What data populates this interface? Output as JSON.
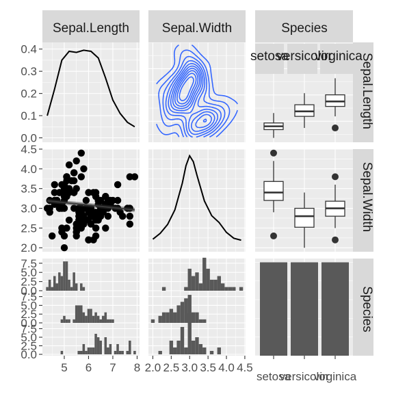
{
  "chart_data": {
    "type": "pairs",
    "variables": [
      "Sepal.Length",
      "Sepal.Width",
      "Species"
    ],
    "strips": {
      "top": [
        "Sepal.Length",
        "Sepal.Width",
        "Species"
      ],
      "right": [
        "Sepal.Length",
        "Sepal.Width",
        "Species"
      ],
      "species_sub": [
        "setosa",
        "versicolor",
        "virginica"
      ]
    },
    "axes": {
      "x_sepal_length": {
        "range": [
          4.1,
          8.1
        ],
        "ticks": [
          "5",
          "6",
          "7",
          "8"
        ],
        "tick_values": [
          5,
          6,
          7,
          8
        ]
      },
      "x_sepal_width": {
        "range": [
          1.88,
          4.52
        ],
        "ticks": [
          "2.0",
          "2.5",
          "3.0",
          "3.5",
          "4.0",
          "4.5"
        ],
        "tick_values": [
          2.0,
          2.5,
          3.0,
          3.5,
          4.0,
          4.5
        ]
      },
      "x_species": {
        "ticks": [
          "setosa",
          "versicolor",
          "virginica"
        ]
      },
      "y_density": {
        "range": [
          -0.02,
          0.43
        ],
        "ticks": [
          "0.0",
          "0.1",
          "0.2",
          "0.3",
          "0.4"
        ],
        "tick_values": [
          0,
          0.1,
          0.2,
          0.3,
          0.4
        ]
      },
      "y_sepal_width": {
        "range": [
          1.9,
          4.5
        ],
        "ticks": [
          "2.0",
          "2.5",
          "3.0",
          "3.5",
          "4.0",
          "4.5"
        ],
        "tick_values": [
          2.0,
          2.5,
          3.0,
          3.5,
          4.0,
          4.5
        ]
      },
      "y_count": {
        "range": [
          0,
          8.4
        ],
        "ticks": [
          "0.0",
          "2.5",
          "5.0",
          "7.5"
        ],
        "tick_values": [
          0,
          2.5,
          5.0,
          7.5
        ]
      }
    },
    "panels": {
      "density_sepal_length": {
        "type": "line",
        "x": [
          4.3,
          4.6,
          4.9,
          5.2,
          5.5,
          5.8,
          6.1,
          6.4,
          6.7,
          7.0,
          7.3,
          7.6,
          7.9
        ],
        "y": [
          0.1,
          0.22,
          0.35,
          0.39,
          0.385,
          0.395,
          0.39,
          0.36,
          0.27,
          0.17,
          0.11,
          0.07,
          0.05
        ]
      },
      "density_sepal_width": {
        "type": "line",
        "x": [
          2.0,
          2.2,
          2.4,
          2.6,
          2.8,
          2.9,
          3.0,
          3.1,
          3.2,
          3.4,
          3.6,
          3.8,
          4.0,
          4.2,
          4.4
        ],
        "y": [
          0.03,
          0.09,
          0.18,
          0.33,
          0.6,
          0.78,
          0.88,
          0.82,
          0.68,
          0.42,
          0.27,
          0.2,
          0.1,
          0.04,
          0.02
        ]
      },
      "scatter_sepal_length_vs_width": {
        "type": "scatter",
        "points": [
          [
            5.1,
            3.5
          ],
          [
            4.9,
            3.0
          ],
          [
            4.7,
            3.2
          ],
          [
            4.6,
            3.1
          ],
          [
            5.0,
            3.6
          ],
          [
            5.4,
            3.9
          ],
          [
            4.6,
            3.4
          ],
          [
            5.0,
            3.4
          ],
          [
            4.4,
            2.9
          ],
          [
            4.9,
            3.1
          ],
          [
            5.4,
            3.7
          ],
          [
            4.8,
            3.4
          ],
          [
            4.8,
            3.0
          ],
          [
            4.3,
            3.0
          ],
          [
            5.8,
            4.0
          ],
          [
            5.7,
            4.4
          ],
          [
            5.4,
            3.9
          ],
          [
            5.1,
            3.5
          ],
          [
            5.7,
            3.8
          ],
          [
            5.1,
            3.8
          ],
          [
            5.4,
            3.4
          ],
          [
            5.1,
            3.7
          ],
          [
            4.6,
            3.6
          ],
          [
            5.1,
            3.3
          ],
          [
            4.8,
            3.4
          ],
          [
            5.0,
            3.0
          ],
          [
            5.0,
            3.4
          ],
          [
            5.2,
            3.5
          ],
          [
            5.2,
            3.4
          ],
          [
            4.7,
            3.2
          ],
          [
            4.8,
            3.1
          ],
          [
            5.4,
            3.4
          ],
          [
            5.2,
            4.1
          ],
          [
            5.5,
            4.2
          ],
          [
            4.9,
            3.1
          ],
          [
            5.0,
            3.2
          ],
          [
            5.5,
            3.5
          ],
          [
            4.9,
            3.6
          ],
          [
            4.4,
            3.0
          ],
          [
            5.1,
            3.4
          ],
          [
            5.0,
            3.5
          ],
          [
            4.5,
            2.3
          ],
          [
            4.4,
            3.2
          ],
          [
            5.0,
            3.5
          ],
          [
            5.1,
            3.8
          ],
          [
            4.8,
            3.0
          ],
          [
            5.1,
            3.8
          ],
          [
            4.6,
            3.2
          ],
          [
            5.3,
            3.7
          ],
          [
            5.0,
            3.3
          ],
          [
            7.0,
            3.2
          ],
          [
            6.4,
            3.2
          ],
          [
            6.9,
            3.1
          ],
          [
            5.5,
            2.3
          ],
          [
            6.5,
            2.8
          ],
          [
            5.7,
            2.8
          ],
          [
            6.3,
            3.3
          ],
          [
            4.9,
            2.4
          ],
          [
            6.6,
            2.9
          ],
          [
            5.2,
            2.7
          ],
          [
            5.0,
            2.0
          ],
          [
            5.9,
            3.0
          ],
          [
            6.0,
            2.2
          ],
          [
            6.1,
            2.9
          ],
          [
            5.6,
            2.9
          ],
          [
            6.7,
            3.1
          ],
          [
            5.6,
            3.0
          ],
          [
            5.8,
            2.7
          ],
          [
            6.2,
            2.2
          ],
          [
            5.6,
            2.5
          ],
          [
            5.9,
            3.2
          ],
          [
            6.1,
            2.8
          ],
          [
            6.3,
            2.5
          ],
          [
            6.1,
            2.8
          ],
          [
            6.4,
            2.9
          ],
          [
            6.6,
            3.0
          ],
          [
            6.8,
            2.8
          ],
          [
            6.7,
            3.0
          ],
          [
            6.0,
            2.9
          ],
          [
            5.7,
            2.6
          ],
          [
            5.5,
            2.4
          ],
          [
            5.5,
            2.4
          ],
          [
            5.8,
            2.7
          ],
          [
            6.0,
            2.7
          ],
          [
            5.4,
            3.0
          ],
          [
            6.0,
            3.4
          ],
          [
            6.7,
            3.1
          ],
          [
            6.3,
            2.3
          ],
          [
            5.6,
            3.0
          ],
          [
            5.5,
            2.5
          ],
          [
            5.5,
            2.6
          ],
          [
            6.1,
            3.0
          ],
          [
            5.8,
            2.6
          ],
          [
            5.0,
            2.3
          ],
          [
            5.6,
            2.7
          ],
          [
            5.7,
            3.0
          ],
          [
            5.7,
            2.9
          ],
          [
            6.2,
            2.9
          ],
          [
            5.1,
            2.5
          ],
          [
            5.7,
            2.8
          ],
          [
            6.3,
            3.3
          ],
          [
            5.8,
            2.7
          ],
          [
            7.1,
            3.0
          ],
          [
            6.3,
            2.9
          ],
          [
            6.5,
            3.0
          ],
          [
            7.6,
            3.0
          ],
          [
            4.9,
            2.5
          ],
          [
            7.3,
            2.9
          ],
          [
            6.7,
            2.5
          ],
          [
            7.2,
            3.6
          ],
          [
            6.5,
            3.2
          ],
          [
            6.4,
            2.7
          ],
          [
            6.8,
            3.0
          ],
          [
            5.7,
            2.5
          ],
          [
            5.8,
            2.8
          ],
          [
            6.4,
            3.2
          ],
          [
            6.5,
            3.0
          ],
          [
            7.7,
            3.8
          ],
          [
            7.7,
            2.6
          ],
          [
            6.0,
            2.2
          ],
          [
            6.9,
            3.2
          ],
          [
            5.6,
            2.8
          ],
          [
            7.7,
            2.8
          ],
          [
            6.3,
            2.7
          ],
          [
            6.7,
            3.3
          ],
          [
            7.2,
            3.2
          ],
          [
            6.2,
            2.8
          ],
          [
            6.1,
            3.0
          ],
          [
            6.4,
            2.8
          ],
          [
            7.2,
            3.0
          ],
          [
            7.4,
            2.8
          ],
          [
            7.9,
            3.8
          ],
          [
            6.4,
            2.8
          ],
          [
            6.3,
            2.8
          ],
          [
            6.1,
            2.6
          ],
          [
            7.7,
            3.0
          ],
          [
            6.3,
            3.4
          ],
          [
            6.4,
            3.1
          ],
          [
            6.0,
            3.0
          ],
          [
            6.9,
            3.1
          ],
          [
            6.7,
            3.1
          ],
          [
            6.9,
            3.1
          ],
          [
            5.8,
            2.7
          ],
          [
            6.8,
            3.2
          ],
          [
            6.7,
            3.3
          ],
          [
            6.7,
            3.0
          ],
          [
            6.3,
            2.5
          ],
          [
            6.5,
            3.0
          ],
          [
            6.2,
            3.4
          ],
          [
            5.9,
            3.0
          ]
        ],
        "smooth": {
          "method": "lm",
          "x": [
            4.3,
            7.9
          ],
          "y": [
            3.19,
            2.96
          ]
        }
      },
      "box_species_vs_sepal_length": {
        "type": "boxplot",
        "groups": [
          {
            "name": "setosa",
            "min": 4.3,
            "q1": 4.8,
            "median": 5.0,
            "q3": 5.2,
            "max": 5.8,
            "outliers": []
          },
          {
            "name": "versicolor",
            "min": 4.9,
            "q1": 5.6,
            "median": 5.9,
            "q3": 6.3,
            "max": 7.0,
            "outliers": []
          },
          {
            "name": "virginica",
            "min": 5.6,
            "q1": 6.2,
            "median": 6.5,
            "q3": 6.9,
            "max": 7.9,
            "outliers": [
              4.9
            ]
          }
        ]
      },
      "box_species_vs_sepal_width": {
        "type": "boxplot",
        "groups": [
          {
            "name": "setosa",
            "min": 2.9,
            "q1": 3.2,
            "median": 3.4,
            "q3": 3.68,
            "max": 4.2,
            "outliers": [
              4.4,
              2.3
            ]
          },
          {
            "name": "versicolor",
            "min": 2.0,
            "q1": 2.52,
            "median": 2.8,
            "q3": 3.0,
            "max": 3.4,
            "outliers": []
          },
          {
            "name": "virginica",
            "min": 2.5,
            "q1": 2.8,
            "median": 3.0,
            "q3": 3.18,
            "max": 3.6,
            "outliers": [
              3.8,
              2.2
            ]
          }
        ]
      },
      "species_bar": {
        "type": "bar",
        "categories": [
          "setosa",
          "versicolor",
          "virginica"
        ],
        "values": [
          50,
          50,
          50
        ]
      },
      "hist_sepal_length_by_species": {
        "type": "histogram",
        "bins": [
          4.3,
          4.4,
          4.5,
          4.6,
          4.7,
          4.8,
          4.9,
          5.0,
          5.1,
          5.2,
          5.3,
          5.4,
          5.5,
          5.6,
          5.7,
          5.8,
          5.9,
          6.0,
          6.1,
          6.2,
          6.3,
          6.4,
          6.5,
          6.6,
          6.7,
          6.8,
          6.9,
          7.0,
          7.1,
          7.2,
          7.3,
          7.4,
          7.5,
          7.6,
          7.7,
          7.8,
          7.9
        ],
        "counts": {
          "setosa": [
            1,
            3,
            1,
            4,
            2,
            5,
            4,
            8,
            8,
            3,
            1,
            5,
            2,
            0,
            2,
            1,
            0,
            0,
            0,
            0,
            0,
            0,
            0,
            0,
            0,
            0,
            0,
            0,
            0,
            0,
            0,
            0,
            0,
            0,
            0,
            0,
            0
          ],
          "versicolor": [
            0,
            0,
            0,
            0,
            0,
            0,
            1,
            2,
            1,
            1,
            0,
            1,
            5,
            5,
            5,
            3,
            2,
            4,
            4,
            2,
            3,
            2,
            1,
            2,
            3,
            1,
            1,
            1,
            0,
            0,
            0,
            0,
            0,
            0,
            0,
            0,
            0
          ],
          "virginica": [
            0,
            0,
            0,
            0,
            0,
            0,
            1,
            0,
            0,
            0,
            0,
            0,
            0,
            1,
            1,
            3,
            1,
            2,
            2,
            2,
            6,
            5,
            4,
            0,
            5,
            2,
            3,
            0,
            1,
            3,
            1,
            1,
            0,
            1,
            4,
            0,
            1
          ]
        }
      },
      "hist_sepal_width_by_species": {
        "type": "histogram",
        "bins": [
          2.0,
          2.1,
          2.2,
          2.3,
          2.4,
          2.5,
          2.6,
          2.7,
          2.8,
          2.9,
          3.0,
          3.1,
          3.2,
          3.3,
          3.4,
          3.5,
          3.6,
          3.7,
          3.8,
          3.9,
          4.0,
          4.1,
          4.2,
          4.3,
          4.4
        ],
        "counts": {
          "setosa": [
            0,
            0,
            0,
            1,
            0,
            0,
            0,
            0,
            0,
            1,
            6,
            4,
            5,
            2,
            9,
            6,
            3,
            3,
            4,
            2,
            1,
            1,
            1,
            0,
            1
          ],
          "versicolor": [
            1,
            0,
            2,
            3,
            3,
            4,
            3,
            5,
            6,
            7,
            8,
            3,
            3,
            1,
            1,
            0,
            0,
            0,
            0,
            0,
            0,
            0,
            0,
            0,
            0
          ],
          "virginica": [
            0,
            0,
            1,
            0,
            0,
            4,
            2,
            4,
            8,
            2,
            12,
            4,
            5,
            3,
            2,
            0,
            1,
            0,
            2,
            0,
            0,
            0,
            0,
            0,
            0
          ]
        }
      }
    }
  }
}
